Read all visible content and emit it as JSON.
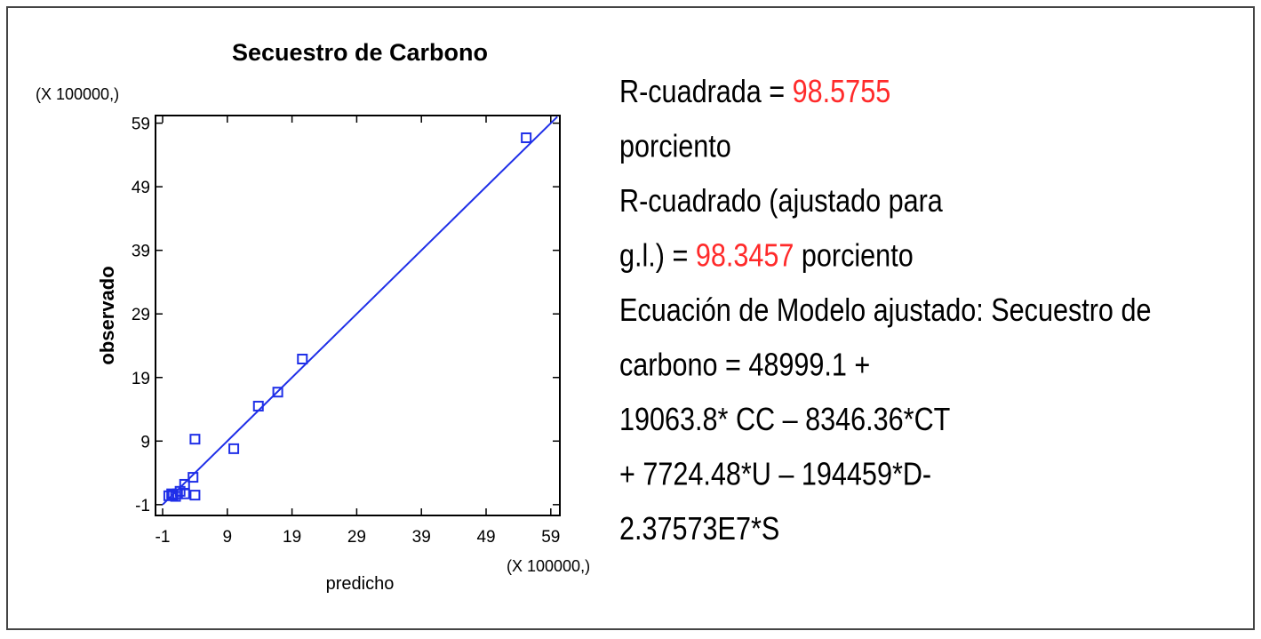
{
  "chart_data": {
    "type": "scatter",
    "title": "Secuestro de Carbono",
    "x_label": "predicho",
    "y_label": "observado",
    "x_multiplier": "(X 100000,)",
    "y_multiplier": "(X 100000,)",
    "xlim": [
      -2.1,
      60.4
    ],
    "ylim": [
      -2.7,
      60.2
    ],
    "xticks": [
      -1,
      9,
      19,
      29,
      39,
      49,
      59
    ],
    "yticks": [
      -1,
      9,
      19,
      29,
      39,
      49,
      59
    ],
    "color": "#1f2fe8",
    "x": [
      55.2,
      20.6,
      16.8,
      13.8,
      10.0,
      4.0,
      3.7,
      4.0,
      2.4,
      2.4,
      -0.05,
      0.6,
      1.3,
      1.7,
      1.0,
      0.4
    ],
    "values": [
      56.7,
      21.9,
      16.7,
      14.5,
      7.8,
      9.3,
      3.3,
      0.5,
      2.2,
      0.7,
      0.4,
      0.5,
      0.7,
      1.1,
      0.3,
      0.7
    ],
    "line": {
      "x": [
        -1,
        60
      ],
      "y": [
        -1,
        60
      ]
    }
  },
  "text_panel": {
    "highlight_color": "#ff2a2a",
    "lines": [
      [
        {
          "text": "R-cuadrada = "
        },
        {
          "text": "98.5755",
          "highlight": true
        }
      ],
      [
        {
          "text": "porciento"
        }
      ],
      [
        {
          "text": "R-cuadrado (ajustado para"
        }
      ],
      [
        {
          "text": "g.l.) = "
        },
        {
          "text": "98.3457",
          "highlight": true
        },
        {
          "text": " porciento"
        }
      ],
      [
        {
          "text": "Ecuación de Modelo ajustado: Secuestro de"
        }
      ],
      [
        {
          "text": "carbono = 48999.1 +"
        }
      ],
      [
        {
          "text": "19063.8* CC – 8346.36*CT"
        }
      ],
      [
        {
          "text": "+ 7724.48*U – 194459*D-"
        }
      ],
      [
        {
          "text": "2.37573E7*S"
        }
      ]
    ]
  }
}
